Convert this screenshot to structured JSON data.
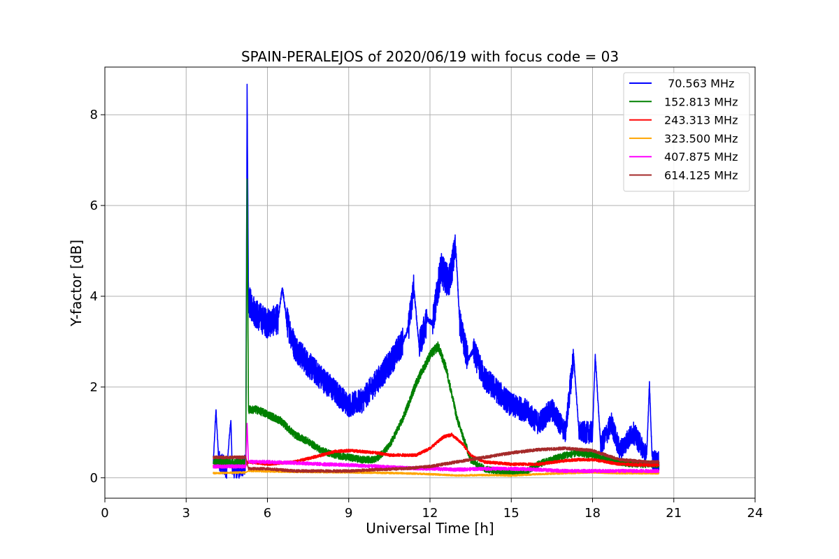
{
  "chart_data": {
    "type": "line",
    "title": "SPAIN-PERALEJOS of 2020/06/19 with focus code = 03",
    "xlabel": "Universal Time [h]",
    "ylabel": "Y-factor [dB]",
    "xlim": [
      0,
      24
    ],
    "ylim": [
      -0.45,
      9.05
    ],
    "xticks": [
      0,
      3,
      6,
      9,
      12,
      15,
      18,
      21,
      24
    ],
    "yticks": [
      0,
      2,
      4,
      6,
      8
    ],
    "grid": true,
    "legend_position": "top-right",
    "series": [
      {
        "name": " 70.563 MHz",
        "color": "#0000ff",
        "noise": 0.35,
        "points": [
          [
            4.0,
            0.3
          ],
          [
            4.1,
            1.5
          ],
          [
            4.2,
            0.4
          ],
          [
            4.5,
            0.2
          ],
          [
            4.65,
            1.3
          ],
          [
            4.7,
            0.2
          ],
          [
            5.0,
            0.2
          ],
          [
            5.2,
            0.3
          ],
          [
            5.25,
            8.6
          ],
          [
            5.3,
            3.9
          ],
          [
            5.6,
            3.6
          ],
          [
            6.0,
            3.4
          ],
          [
            6.4,
            3.5
          ],
          [
            6.55,
            4.2
          ],
          [
            6.7,
            3.5
          ],
          [
            7.0,
            2.9
          ],
          [
            7.5,
            2.5
          ],
          [
            8.0,
            2.2
          ],
          [
            8.5,
            1.9
          ],
          [
            9.0,
            1.6
          ],
          [
            9.5,
            1.7
          ],
          [
            10.0,
            2.1
          ],
          [
            10.5,
            2.5
          ],
          [
            11.0,
            3.0
          ],
          [
            11.2,
            3.3
          ],
          [
            11.4,
            4.2
          ],
          [
            11.6,
            2.9
          ],
          [
            11.9,
            3.5
          ],
          [
            12.1,
            3.4
          ],
          [
            12.4,
            4.6
          ],
          [
            12.7,
            4.3
          ],
          [
            12.95,
            5.1
          ],
          [
            13.1,
            3.4
          ],
          [
            13.4,
            2.6
          ],
          [
            13.6,
            2.8
          ],
          [
            14.0,
            2.2
          ],
          [
            14.5,
            1.9
          ],
          [
            15.0,
            1.6
          ],
          [
            15.5,
            1.5
          ],
          [
            16.0,
            1.2
          ],
          [
            16.5,
            1.5
          ],
          [
            17.0,
            1.0
          ],
          [
            17.3,
            2.7
          ],
          [
            17.5,
            1.0
          ],
          [
            18.0,
            1.0
          ],
          [
            18.1,
            2.7
          ],
          [
            18.3,
            0.7
          ],
          [
            18.7,
            1.2
          ],
          [
            19.0,
            0.6
          ],
          [
            19.5,
            1.0
          ],
          [
            20.0,
            0.5
          ],
          [
            20.1,
            2.1
          ],
          [
            20.2,
            0.4
          ],
          [
            20.45,
            0.35
          ]
        ]
      },
      {
        "name": "152.813 MHz",
        "color": "#008000",
        "noise": 0.12,
        "points": [
          [
            4.0,
            0.35
          ],
          [
            5.2,
            0.35
          ],
          [
            5.25,
            6.6
          ],
          [
            5.3,
            1.5
          ],
          [
            5.6,
            1.5
          ],
          [
            6.0,
            1.4
          ],
          [
            6.5,
            1.25
          ],
          [
            7.0,
            0.95
          ],
          [
            7.5,
            0.8
          ],
          [
            8.0,
            0.6
          ],
          [
            8.5,
            0.5
          ],
          [
            9.0,
            0.45
          ],
          [
            9.5,
            0.4
          ],
          [
            10.0,
            0.4
          ],
          [
            10.5,
            0.7
          ],
          [
            11.0,
            1.3
          ],
          [
            11.5,
            2.1
          ],
          [
            12.0,
            2.7
          ],
          [
            12.3,
            2.9
          ],
          [
            12.6,
            2.4
          ],
          [
            13.0,
            1.3
          ],
          [
            13.5,
            0.4
          ],
          [
            14.0,
            0.2
          ],
          [
            14.5,
            0.15
          ],
          [
            15.0,
            0.1
          ],
          [
            15.5,
            0.12
          ],
          [
            16.0,
            0.3
          ],
          [
            16.5,
            0.4
          ],
          [
            17.0,
            0.5
          ],
          [
            17.5,
            0.55
          ],
          [
            18.0,
            0.5
          ],
          [
            18.5,
            0.4
          ],
          [
            19.0,
            0.35
          ],
          [
            19.5,
            0.3
          ],
          [
            20.0,
            0.3
          ],
          [
            20.45,
            0.3
          ]
        ]
      },
      {
        "name": "243.313 MHz",
        "color": "#ff0000",
        "noise": 0.05,
        "points": [
          [
            4.0,
            0.25
          ],
          [
            5.2,
            0.25
          ],
          [
            5.25,
            0.35
          ],
          [
            6.0,
            0.3
          ],
          [
            7.0,
            0.35
          ],
          [
            8.0,
            0.5
          ],
          [
            8.5,
            0.58
          ],
          [
            9.0,
            0.6
          ],
          [
            9.5,
            0.58
          ],
          [
            10.0,
            0.55
          ],
          [
            10.5,
            0.5
          ],
          [
            11.0,
            0.5
          ],
          [
            11.5,
            0.5
          ],
          [
            12.0,
            0.65
          ],
          [
            12.5,
            0.9
          ],
          [
            12.8,
            0.95
          ],
          [
            13.2,
            0.75
          ],
          [
            13.5,
            0.5
          ],
          [
            14.0,
            0.35
          ],
          [
            15.0,
            0.3
          ],
          [
            16.0,
            0.3
          ],
          [
            17.0,
            0.38
          ],
          [
            17.5,
            0.4
          ],
          [
            18.0,
            0.4
          ],
          [
            18.5,
            0.35
          ],
          [
            19.0,
            0.3
          ],
          [
            20.0,
            0.28
          ],
          [
            20.45,
            0.28
          ]
        ]
      },
      {
        "name": "323.500 MHz",
        "color": "#ffa500",
        "noise": 0.03,
        "points": [
          [
            4.0,
            0.1
          ],
          [
            5.2,
            0.12
          ],
          [
            5.3,
            0.15
          ],
          [
            7.0,
            0.13
          ],
          [
            9.0,
            0.12
          ],
          [
            11.0,
            0.1
          ],
          [
            12.0,
            0.08
          ],
          [
            13.0,
            0.05
          ],
          [
            14.0,
            0.06
          ],
          [
            15.0,
            0.05
          ],
          [
            16.0,
            0.08
          ],
          [
            17.0,
            0.1
          ],
          [
            18.0,
            0.12
          ],
          [
            19.0,
            0.1
          ],
          [
            20.45,
            0.1
          ]
        ]
      },
      {
        "name": "407.875 MHz",
        "color": "#ff00ff",
        "noise": 0.06,
        "points": [
          [
            4.0,
            0.25
          ],
          [
            5.2,
            0.25
          ],
          [
            5.25,
            1.2
          ],
          [
            5.3,
            0.35
          ],
          [
            6.0,
            0.35
          ],
          [
            7.0,
            0.33
          ],
          [
            8.0,
            0.3
          ],
          [
            9.0,
            0.28
          ],
          [
            10.0,
            0.25
          ],
          [
            11.0,
            0.22
          ],
          [
            12.0,
            0.2
          ],
          [
            13.0,
            0.18
          ],
          [
            14.0,
            0.2
          ],
          [
            15.0,
            0.2
          ],
          [
            16.0,
            0.18
          ],
          [
            17.0,
            0.15
          ],
          [
            18.0,
            0.15
          ],
          [
            19.0,
            0.15
          ],
          [
            20.0,
            0.15
          ],
          [
            20.45,
            0.15
          ]
        ]
      },
      {
        "name": "614.125 MHz",
        "color": "#a52a2a",
        "noise": 0.05,
        "points": [
          [
            4.0,
            0.45
          ],
          [
            5.2,
            0.45
          ],
          [
            5.3,
            0.2
          ],
          [
            6.0,
            0.2
          ],
          [
            7.0,
            0.15
          ],
          [
            8.0,
            0.15
          ],
          [
            9.0,
            0.15
          ],
          [
            10.0,
            0.18
          ],
          [
            11.0,
            0.2
          ],
          [
            12.0,
            0.25
          ],
          [
            13.0,
            0.35
          ],
          [
            14.0,
            0.45
          ],
          [
            15.0,
            0.55
          ],
          [
            16.0,
            0.62
          ],
          [
            17.0,
            0.65
          ],
          [
            18.0,
            0.6
          ],
          [
            18.5,
            0.5
          ],
          [
            19.0,
            0.4
          ],
          [
            20.0,
            0.35
          ],
          [
            20.45,
            0.35
          ]
        ]
      }
    ]
  }
}
